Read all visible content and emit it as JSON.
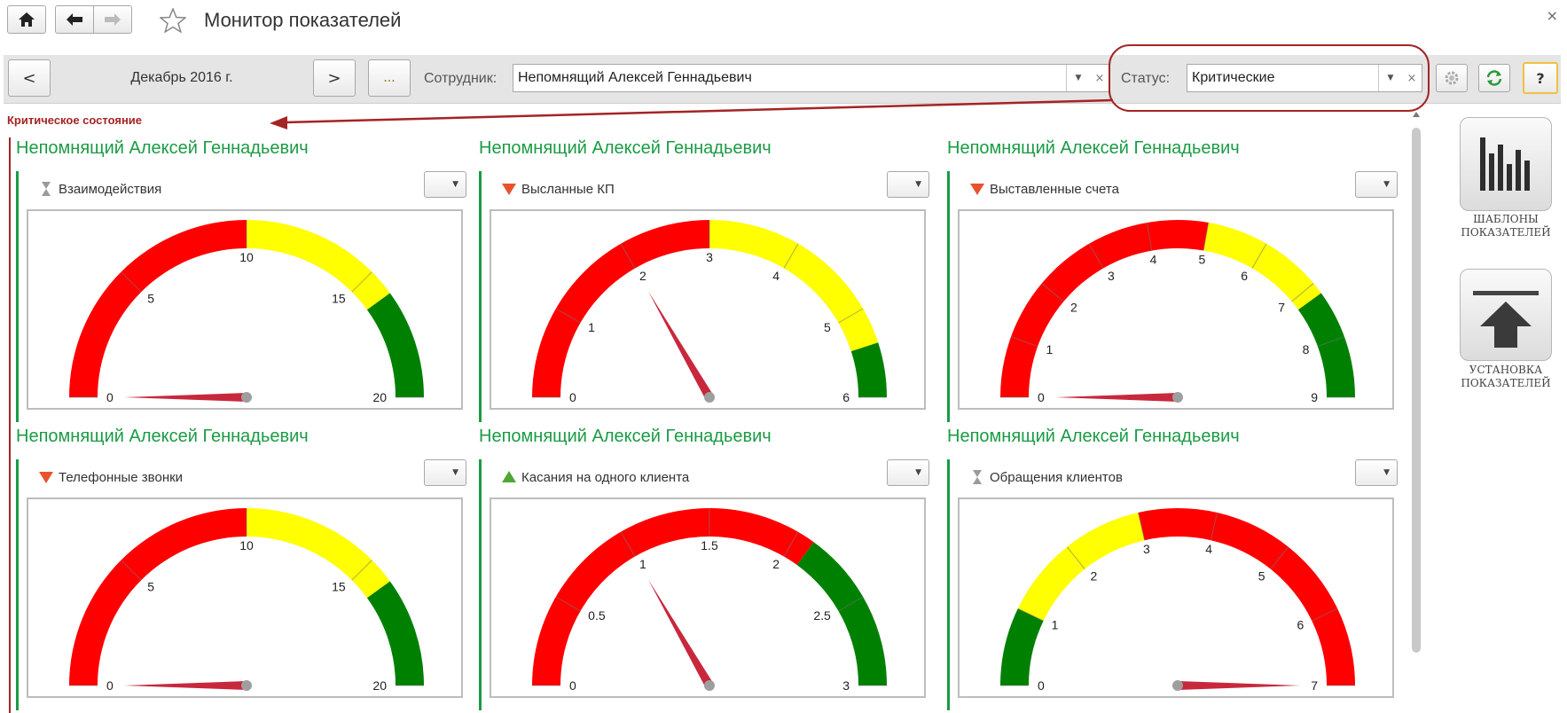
{
  "window": {
    "title": "Монитор показателей",
    "close_glyph": "×"
  },
  "nav": {
    "home_icon": "home-icon",
    "back_glyph": "🡐",
    "forward_glyph": "🡒",
    "favorite_icon": "star-icon"
  },
  "toolbar": {
    "prev_label": "<",
    "period": "Декабрь 2016 г.",
    "next_label": ">",
    "more_label": "...",
    "employee_label": "Сотрудник:",
    "employee_value": "Непомнящий Алексей Геннадьевич",
    "status_label": "Статус:",
    "status_value": "Критические",
    "help_label": "?"
  },
  "section_title": "Критическое состояние",
  "colors": {
    "red": "#ff0000",
    "yellow": "#ffff00",
    "green": "#008000",
    "needle": "#c8283c",
    "accent_green": "#1b9b45",
    "accent_red": "#a42424"
  },
  "panels": [
    {
      "employee": "Непомнящий Алексей Геннадьевич",
      "indicator": "Взаимодействия",
      "trend": "hourglass-icon",
      "gauge": {
        "min": 0,
        "max": 20,
        "value": 0,
        "ticks": [
          "0",
          "5",
          "10",
          "15",
          "20"
        ],
        "bands": [
          {
            "from": 0,
            "to": 10,
            "color": "red"
          },
          {
            "from": 10,
            "to": 16,
            "color": "yellow"
          },
          {
            "from": 16,
            "to": 20,
            "color": "green"
          }
        ]
      }
    },
    {
      "employee": "Непомнящий Алексей Геннадьевич",
      "indicator": "Высланные КП",
      "trend": "down-triangle-icon",
      "gauge": {
        "min": 0,
        "max": 6,
        "value": 2,
        "ticks": [
          "0",
          "1",
          "2",
          "3",
          "4",
          "5",
          "6"
        ],
        "bands": [
          {
            "from": 0,
            "to": 3,
            "color": "red"
          },
          {
            "from": 3,
            "to": 5.4,
            "color": "yellow"
          },
          {
            "from": 5.4,
            "to": 6,
            "color": "green"
          }
        ]
      }
    },
    {
      "employee": "Непомнящий Алексей Геннадьевич",
      "indicator": "Выставленные счета",
      "trend": "down-triangle-icon",
      "gauge": {
        "min": 0,
        "max": 9,
        "value": 0,
        "ticks": [
          "0",
          "1",
          "2",
          "3",
          "4",
          "5",
          "6",
          "7",
          "8",
          "9"
        ],
        "bands": [
          {
            "from": 0,
            "to": 5,
            "color": "red"
          },
          {
            "from": 5,
            "to": 7.2,
            "color": "yellow"
          },
          {
            "from": 7.2,
            "to": 9,
            "color": "green"
          }
        ]
      }
    },
    {
      "employee": "Непомнящий Алексей Геннадьевич",
      "indicator": "Телефонные звонки",
      "trend": "down-triangle-icon",
      "gauge": {
        "min": 0,
        "max": 20,
        "value": 0,
        "ticks": [
          "0",
          "5",
          "10",
          "15",
          "20"
        ],
        "bands": [
          {
            "from": 0,
            "to": 10,
            "color": "red"
          },
          {
            "from": 10,
            "to": 16,
            "color": "yellow"
          },
          {
            "from": 16,
            "to": 20,
            "color": "green"
          }
        ]
      }
    },
    {
      "employee": "Непомнящий Алексей Геннадьевич",
      "indicator": "Касания на одного клиента",
      "trend": "up-triangle-icon",
      "gauge": {
        "min": 0,
        "max": 3,
        "value": 1,
        "ticks": [
          "0",
          "0.5",
          "1",
          "1.5",
          "2",
          "2.5",
          "3"
        ],
        "bands": [
          {
            "from": 0,
            "to": 2.1,
            "color": "red"
          },
          {
            "from": 2.1,
            "to": 3,
            "color": "green"
          }
        ]
      }
    },
    {
      "employee": "Непомнящий Алексей Геннадьевич",
      "indicator": "Обращения клиентов",
      "trend": "hourglass-icon",
      "gauge": {
        "min": 0,
        "max": 7,
        "value": 7,
        "ticks": [
          "0",
          "1",
          "2",
          "3",
          "4",
          "5",
          "6",
          "7"
        ],
        "bands": [
          {
            "from": 0,
            "to": 1,
            "color": "green"
          },
          {
            "from": 1,
            "to": 3,
            "color": "yellow"
          },
          {
            "from": 3,
            "to": 7,
            "color": "red"
          }
        ]
      }
    }
  ],
  "sidebar": {
    "templates": {
      "line1": "ШАБЛОНЫ",
      "line2": "ПОКАЗАТЕЛЕЙ"
    },
    "install": {
      "line1": "УСТАНОВКА",
      "line2": "ПОКАЗАТЕЛЕЙ"
    }
  }
}
